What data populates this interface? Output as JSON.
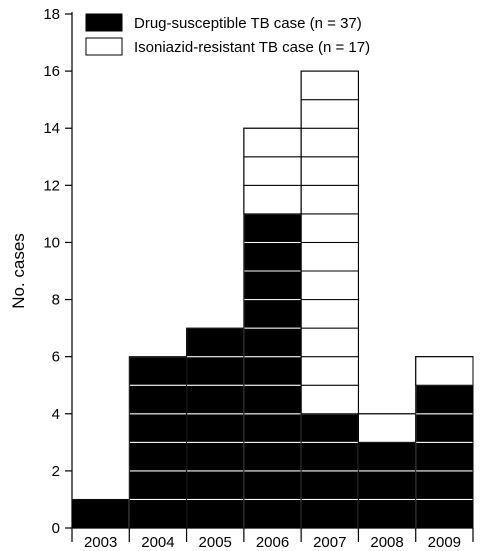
{
  "chart_data": {
    "type": "bar",
    "stacked": true,
    "unit_boxes": true,
    "categories": [
      "2003",
      "2004",
      "2005",
      "2006",
      "2007",
      "2008",
      "2009"
    ],
    "series": [
      {
        "name": "Drug-susceptible TB case (n = 37)",
        "values": [
          1,
          6,
          7,
          11,
          4,
          3,
          5
        ],
        "color": "#000000"
      },
      {
        "name": "Isoniazid-resistant TB case (n = 17)",
        "values": [
          0,
          0,
          0,
          3,
          12,
          1,
          1
        ],
        "color": "#ffffff"
      }
    ],
    "xlabel": "",
    "ylabel": "No. cases",
    "ylim": [
      0,
      18
    ],
    "yticks": [
      0,
      2,
      4,
      6,
      8,
      10,
      12,
      14,
      16,
      18
    ],
    "grid": false,
    "legend_position": "top-left"
  }
}
